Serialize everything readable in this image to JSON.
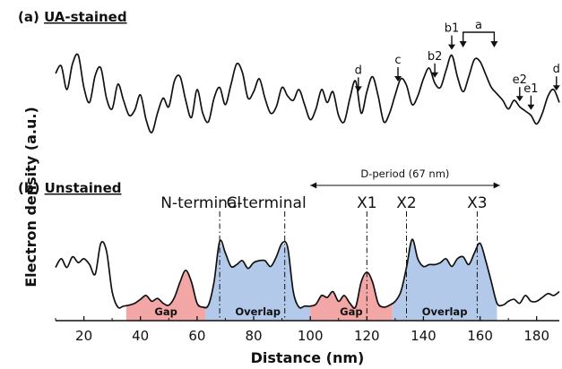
{
  "chart_data": {
    "type": "line",
    "xlabel": "Distance (nm)",
    "ylabel": "Electron density (a.u.)",
    "xlim": [
      10,
      188
    ],
    "xticks": [
      20,
      40,
      60,
      80,
      100,
      120,
      140,
      160,
      180
    ],
    "panels": [
      {
        "id": "a",
        "title_prefix": "(a) ",
        "title": "UA-stained",
        "series": [
          {
            "x": [
              10,
              12,
              14,
              16,
              18,
              20,
              22,
              24,
              26,
              28,
              30,
              32,
              34,
              36,
              38,
              40,
              42,
              44,
              46,
              48,
              50,
              52,
              54,
              56,
              58,
              60,
              62,
              64,
              66,
              68,
              70,
              72,
              74,
              76,
              78,
              80,
              82,
              84,
              86,
              88,
              90,
              92,
              94,
              96,
              98,
              100,
              102,
              104,
              106,
              108,
              110,
              112,
              114,
              116,
              118,
              120,
              122,
              124,
              126,
              128,
              130,
              132,
              134,
              136,
              138,
              140,
              142,
              144,
              146,
              148,
              150,
              152,
              154,
              156,
              158,
              160,
              162,
              164,
              166,
              168,
              170,
              172,
              174,
              176,
              178,
              180,
              182,
              184,
              186,
              188
            ],
            "y": [
              0.65,
              0.72,
              0.5,
              0.74,
              0.82,
              0.52,
              0.38,
              0.63,
              0.7,
              0.42,
              0.32,
              0.55,
              0.4,
              0.26,
              0.31,
              0.45,
              0.22,
              0.1,
              0.28,
              0.42,
              0.34,
              0.58,
              0.62,
              0.4,
              0.24,
              0.5,
              0.28,
              0.2,
              0.42,
              0.52,
              0.36,
              0.55,
              0.74,
              0.66,
              0.42,
              0.48,
              0.6,
              0.42,
              0.28,
              0.34,
              0.52,
              0.44,
              0.4,
              0.5,
              0.36,
              0.22,
              0.32,
              0.5,
              0.38,
              0.48,
              0.26,
              0.2,
              0.42,
              0.58,
              0.28,
              0.48,
              0.62,
              0.44,
              0.2,
              0.28,
              0.45,
              0.6,
              0.54,
              0.36,
              0.44,
              0.6,
              0.7,
              0.56,
              0.52,
              0.68,
              0.82,
              0.62,
              0.48,
              0.62,
              0.78,
              0.76,
              0.64,
              0.52,
              0.46,
              0.4,
              0.32,
              0.4,
              0.34,
              0.3,
              0.26,
              0.18,
              0.28,
              0.44,
              0.5,
              0.38
            ]
          }
        ],
        "annotations": [
          {
            "label": "d",
            "x": 117
          },
          {
            "label": "c",
            "x": 131
          },
          {
            "label": "b2",
            "x": 144
          },
          {
            "label": "b1",
            "x": 150
          },
          {
            "label": "a",
            "x": 160,
            "bracket": [
              154,
              165
            ]
          },
          {
            "label": "e2",
            "x": 174
          },
          {
            "label": "e1",
            "x": 178
          },
          {
            "label": "d",
            "x": 187
          }
        ]
      },
      {
        "id": "b",
        "title_prefix": "(b) ",
        "title": "Unstained",
        "series": [
          {
            "x": [
              10,
              12,
              14,
              16,
              18,
              20,
              22,
              24,
              26,
              28,
              30,
              32,
              34,
              36,
              38,
              40,
              42,
              44,
              46,
              48,
              50,
              52,
              54,
              56,
              58,
              60,
              62,
              64,
              66,
              68,
              70,
              72,
              74,
              76,
              78,
              80,
              82,
              84,
              86,
              88,
              90,
              92,
              94,
              96,
              98,
              100,
              102,
              104,
              106,
              108,
              110,
              112,
              114,
              116,
              118,
              120,
              122,
              124,
              126,
              128,
              130,
              132,
              134,
              136,
              138,
              140,
              142,
              144,
              146,
              148,
              150,
              152,
              154,
              156,
              158,
              160,
              162,
              164,
              166,
              168,
              170,
              172,
              174,
              176,
              178,
              180,
              182,
              184,
              186,
              188
            ],
            "y": [
              0.55,
              0.64,
              0.55,
              0.66,
              0.6,
              0.64,
              0.58,
              0.48,
              0.8,
              0.72,
              0.3,
              0.14,
              0.15,
              0.16,
              0.18,
              0.22,
              0.26,
              0.2,
              0.23,
              0.18,
              0.16,
              0.24,
              0.4,
              0.52,
              0.4,
              0.18,
              0.14,
              0.16,
              0.4,
              0.82,
              0.7,
              0.56,
              0.58,
              0.62,
              0.54,
              0.6,
              0.62,
              0.62,
              0.56,
              0.66,
              0.8,
              0.76,
              0.3,
              0.14,
              0.15,
              0.15,
              0.17,
              0.26,
              0.24,
              0.3,
              0.2,
              0.26,
              0.18,
              0.14,
              0.4,
              0.5,
              0.4,
              0.18,
              0.14,
              0.16,
              0.2,
              0.3,
              0.55,
              0.84,
              0.64,
              0.56,
              0.58,
              0.58,
              0.6,
              0.64,
              0.56,
              0.64,
              0.66,
              0.58,
              0.7,
              0.8,
              0.62,
              0.4,
              0.18,
              0.16,
              0.2,
              0.22,
              0.18,
              0.26,
              0.2,
              0.2,
              0.24,
              0.28,
              0.26,
              0.3
            ]
          }
        ],
        "regions": [
          {
            "label": "Gap",
            "start": 35,
            "end": 63,
            "color": "#f1a1a1"
          },
          {
            "label": "Overlap",
            "start": 63,
            "end": 100,
            "color": "#aec6e8"
          },
          {
            "label": "Gap",
            "start": 100,
            "end": 129,
            "color": "#f1a1a1"
          },
          {
            "label": "Overlap",
            "start": 129,
            "end": 166,
            "color": "#aec6e8"
          }
        ],
        "markers": [
          {
            "label": "N-terminal",
            "x": 68
          },
          {
            "label": "C-terminal",
            "x": 91
          },
          {
            "label": "X1",
            "x": 120
          },
          {
            "label": "X2",
            "x": 134
          },
          {
            "label": "X3",
            "x": 159
          }
        ],
        "d_period": {
          "label": "D-period (67 nm)",
          "start": 100,
          "end": 167
        }
      }
    ],
    "colors": {
      "line": "#111111",
      "gap": "#f1a1a1",
      "overlap": "#aec6e8"
    }
  }
}
